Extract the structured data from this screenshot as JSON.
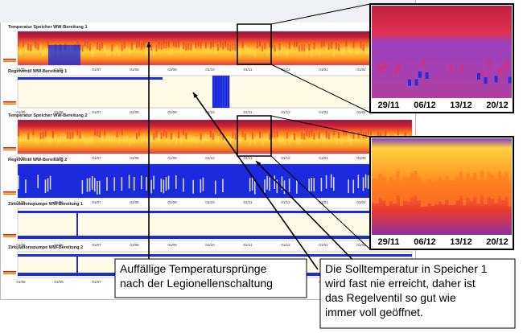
{
  "panels": [
    {
      "title": "Temperatur Speicher WW-Bereitung 1",
      "kind": "temp"
    },
    {
      "title": "Regelventil WW-Bereitung 1",
      "kind": "valve1"
    },
    {
      "title": "Temperatur Speicher WW-Bereitung 2",
      "kind": "temp"
    },
    {
      "title": "Regelventil WW-Bereitung 2",
      "kind": "valve2"
    },
    {
      "title": "Zirkulationspumpe WW-Bereitung 1",
      "kind": "pump"
    },
    {
      "title": "Zirkulationspumpe WW-Bereitung 2",
      "kind": "pump"
    }
  ],
  "x_axis_labels": [
    "01/05",
    "01/06",
    "01/07",
    "01/08",
    "01/09",
    "01/10",
    "01/11",
    "01/12",
    "01/01",
    "01/02",
    "01/03"
  ],
  "zoom_panels": [
    {
      "kind": "zoom1",
      "dates": [
        "29/11",
        "06/12",
        "13/12",
        "20/12"
      ]
    },
    {
      "kind": "zoom2",
      "dates": [
        "29/11",
        "06/12",
        "13/12",
        "20/12"
      ]
    }
  ],
  "callouts": [
    {
      "lines": [
        "Auffällige Temperatursprünge",
        "nach der Legionellenschaltung"
      ]
    },
    {
      "lines": [
        "Die Solltemperatur in Speicher 1",
        "wird fast nie erreicht, daher ist",
        "das Regelventil so gut wie",
        "immer voll geöffnet."
      ]
    }
  ]
}
